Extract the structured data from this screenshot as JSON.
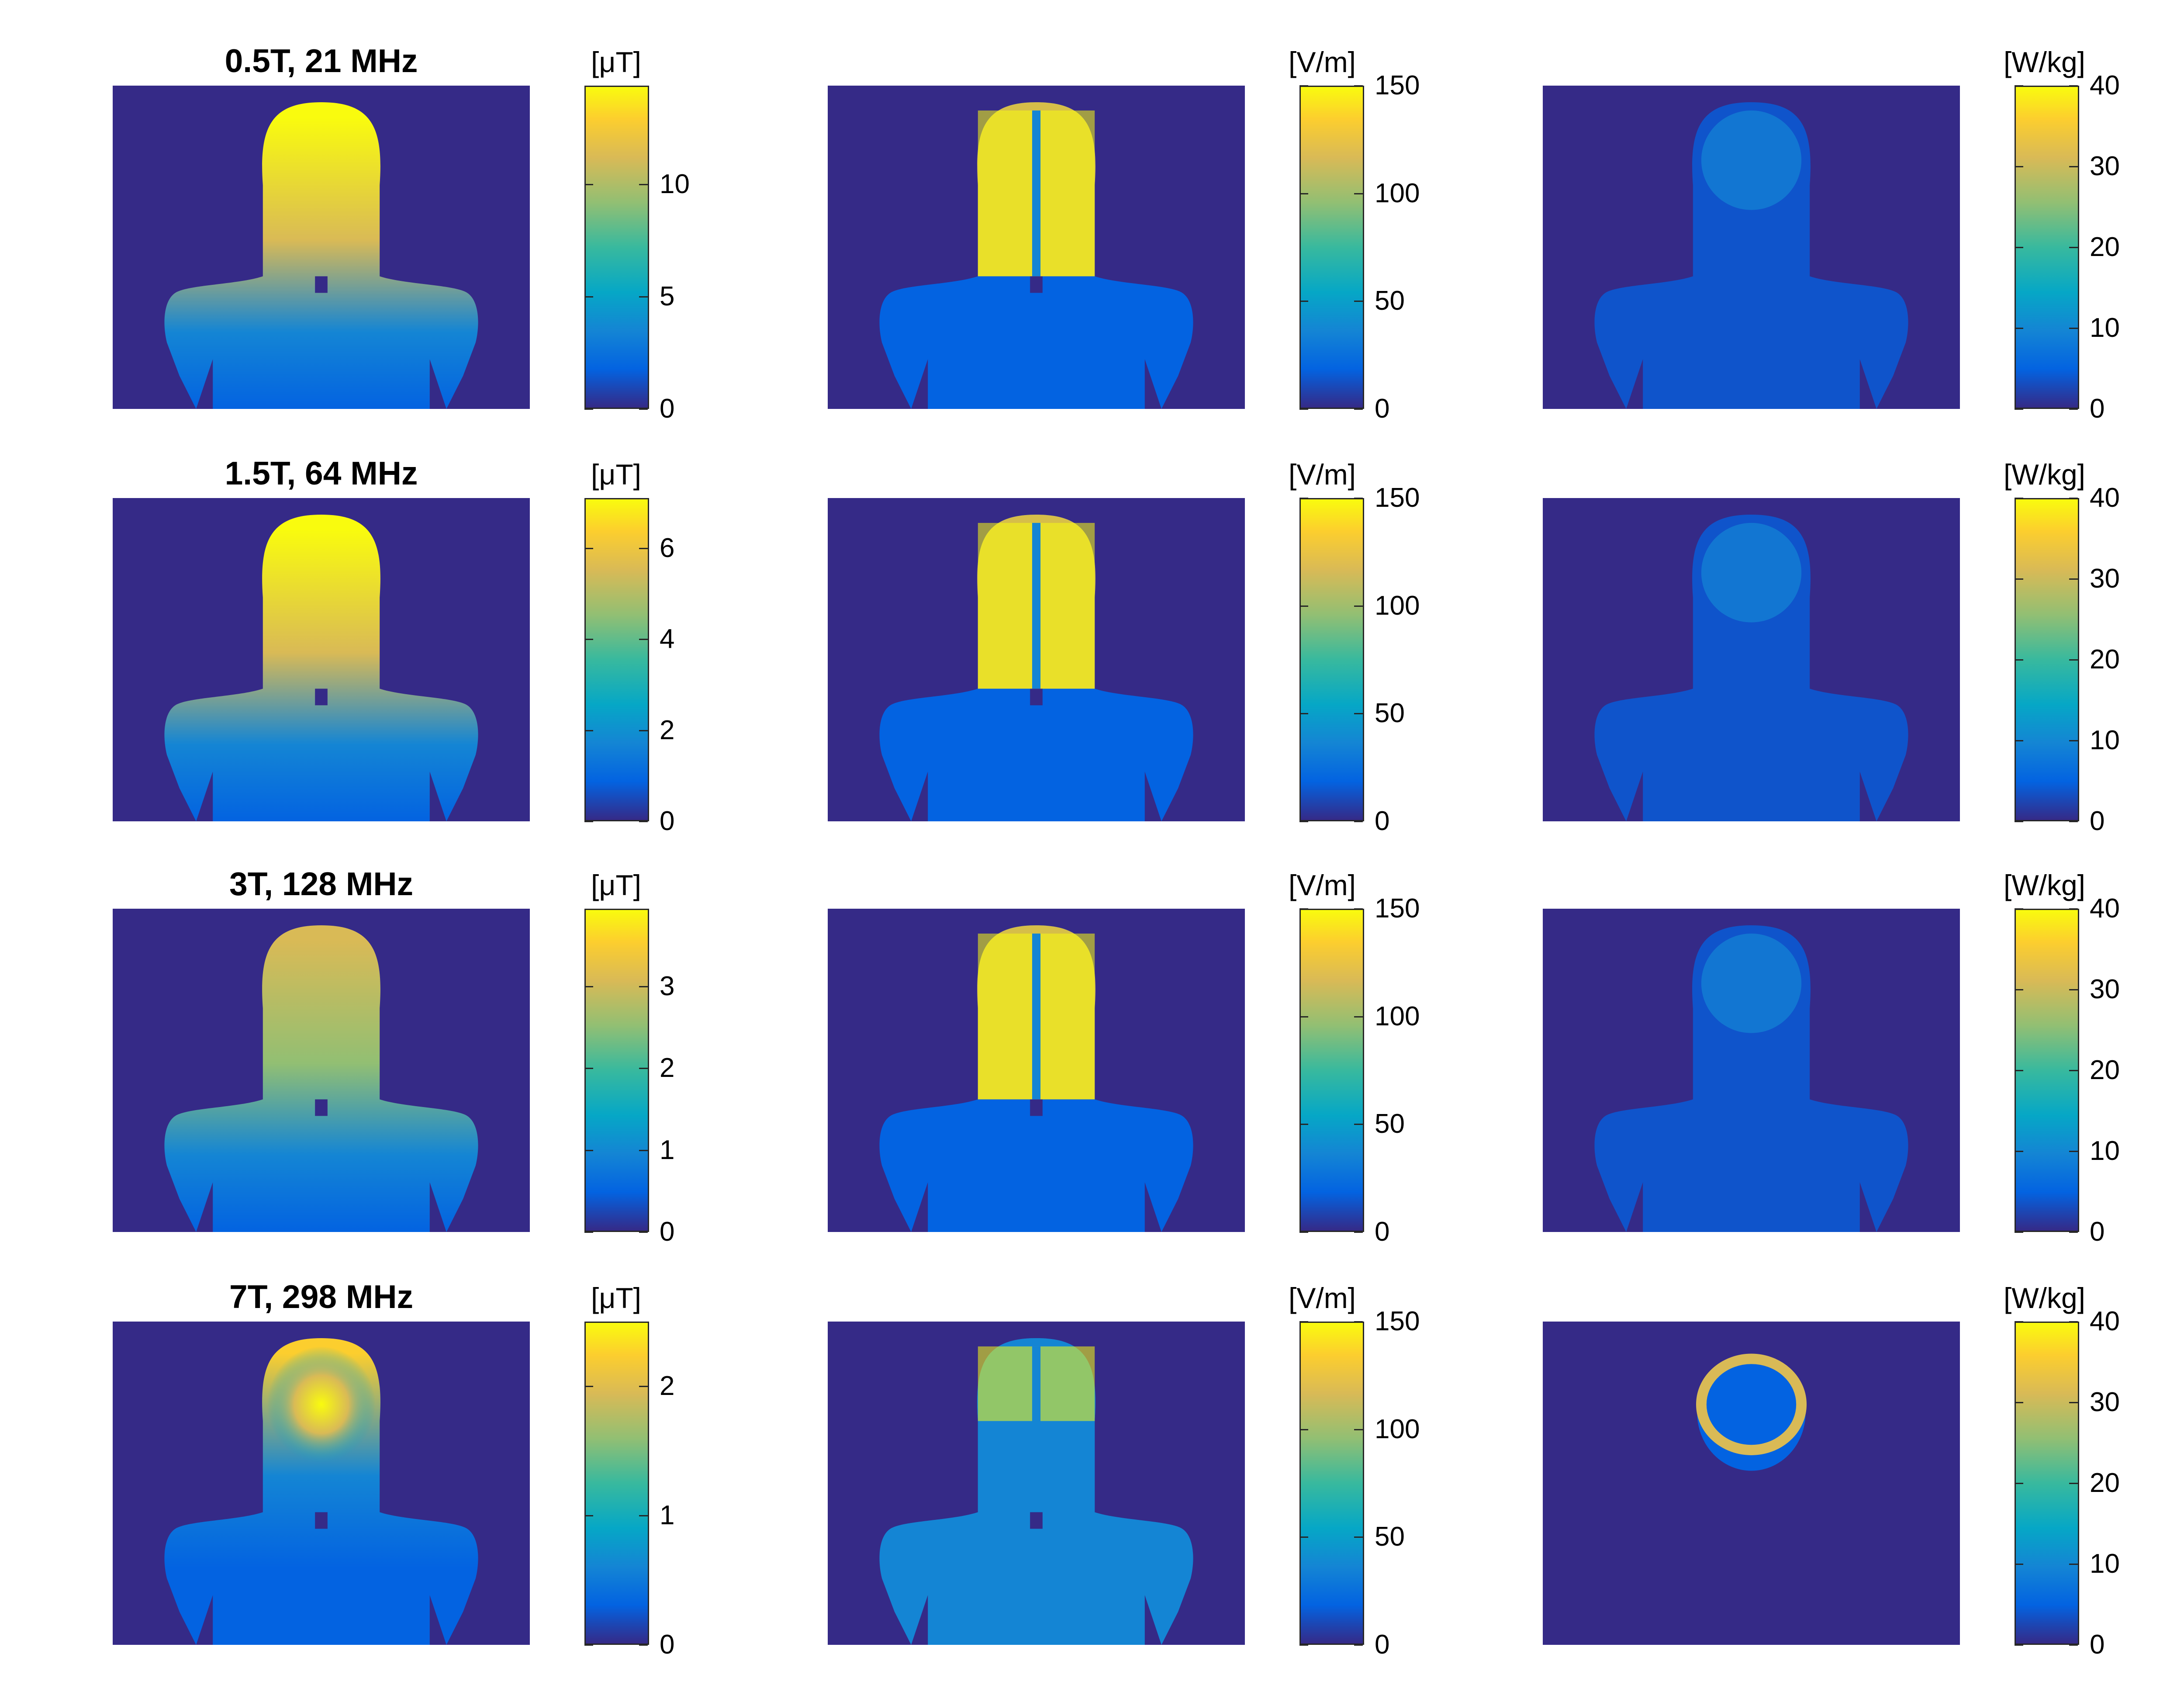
{
  "figure": {
    "row_titles": [
      "0.5T, 21 MHz",
      "1.5T, 64 MHz",
      "3T, 128 MHz",
      "7T, 298 MHz"
    ],
    "rows": [
      {
        "b1": {
          "unit": "[μT]",
          "ticks": [
            {
              "value": 0,
              "label": "0"
            },
            {
              "value": 5,
              "label": "5"
            },
            {
              "value": 10,
              "label": "10"
            }
          ],
          "max": 14.4
        },
        "e": {
          "unit": "[V/m]",
          "ticks": [
            {
              "value": 0,
              "label": "0"
            },
            {
              "value": 50,
              "label": "50"
            },
            {
              "value": 100,
              "label": "100"
            },
            {
              "value": 150,
              "label": "150"
            }
          ],
          "max": 150
        },
        "sar": {
          "unit": "[W/kg]",
          "ticks": [
            {
              "value": 0,
              "label": "0"
            },
            {
              "value": 10,
              "label": "10"
            },
            {
              "value": 20,
              "label": "20"
            },
            {
              "value": 30,
              "label": "30"
            },
            {
              "value": 40,
              "label": "40"
            }
          ],
          "max": 40
        }
      },
      {
        "b1": {
          "unit": "[μT]",
          "ticks": [
            {
              "value": 0,
              "label": "0"
            },
            {
              "value": 2,
              "label": "2"
            },
            {
              "value": 4,
              "label": "4"
            },
            {
              "value": 6,
              "label": "6"
            }
          ],
          "max": 7.1
        },
        "e": {
          "unit": "[V/m]",
          "ticks": [
            {
              "value": 0,
              "label": "0"
            },
            {
              "value": 50,
              "label": "50"
            },
            {
              "value": 100,
              "label": "100"
            },
            {
              "value": 150,
              "label": "150"
            }
          ],
          "max": 150
        },
        "sar": {
          "unit": "[W/kg]",
          "ticks": [
            {
              "value": 0,
              "label": "0"
            },
            {
              "value": 10,
              "label": "10"
            },
            {
              "value": 20,
              "label": "20"
            },
            {
              "value": 30,
              "label": "30"
            },
            {
              "value": 40,
              "label": "40"
            }
          ],
          "max": 40
        }
      },
      {
        "b1": {
          "unit": "[μT]",
          "ticks": [
            {
              "value": 0,
              "label": "0"
            },
            {
              "value": 1,
              "label": "1"
            },
            {
              "value": 2,
              "label": "2"
            },
            {
              "value": 3,
              "label": "3"
            }
          ],
          "max": 3.95
        },
        "e": {
          "unit": "[V/m]",
          "ticks": [
            {
              "value": 0,
              "label": "0"
            },
            {
              "value": 50,
              "label": "50"
            },
            {
              "value": 100,
              "label": "100"
            },
            {
              "value": 150,
              "label": "150"
            }
          ],
          "max": 150
        },
        "sar": {
          "unit": "[W/kg]",
          "ticks": [
            {
              "value": 0,
              "label": "0"
            },
            {
              "value": 10,
              "label": "10"
            },
            {
              "value": 20,
              "label": "20"
            },
            {
              "value": 30,
              "label": "30"
            },
            {
              "value": 40,
              "label": "40"
            }
          ],
          "max": 40
        }
      },
      {
        "b1": {
          "unit": "[μT]",
          "ticks": [
            {
              "value": 0,
              "label": "0"
            },
            {
              "value": 1,
              "label": "1"
            },
            {
              "value": 2,
              "label": "2"
            }
          ],
          "max": 2.5
        },
        "e": {
          "unit": "[V/m]",
          "ticks": [
            {
              "value": 0,
              "label": "0"
            },
            {
              "value": 50,
              "label": "50"
            },
            {
              "value": 100,
              "label": "100"
            },
            {
              "value": 150,
              "label": "150"
            }
          ],
          "max": 150
        },
        "sar": {
          "unit": "[W/kg]",
          "ticks": [
            {
              "value": 0,
              "label": "0"
            },
            {
              "value": 10,
              "label": "10"
            },
            {
              "value": 20,
              "label": "20"
            },
            {
              "value": 30,
              "label": "30"
            },
            {
              "value": 40,
              "label": "40"
            }
          ],
          "max": 40
        }
      }
    ],
    "colormap": [
      "#352a87",
      "#0363e1",
      "#1485d4",
      "#06a7c6",
      "#38b99e",
      "#92bf73",
      "#d9ba56",
      "#fcce2e",
      "#f9fb0e"
    ],
    "background_color": "#352a87"
  }
}
